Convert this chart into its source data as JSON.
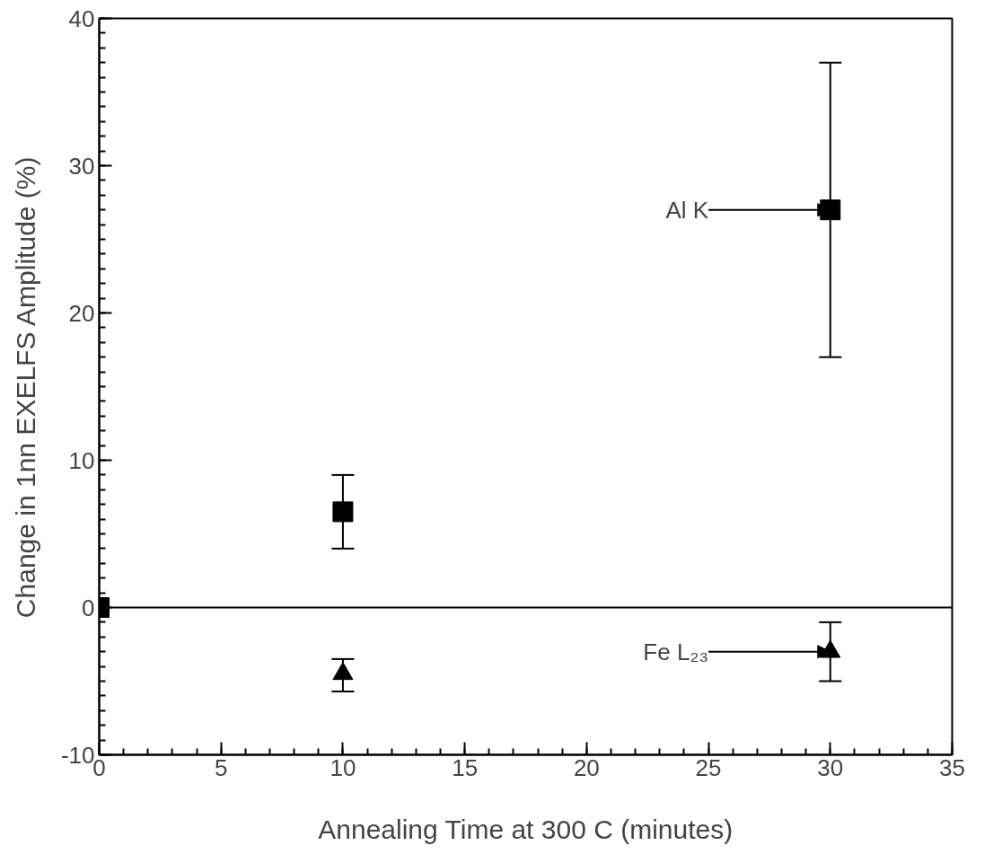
{
  "chart_data": {
    "type": "scatter",
    "xlabel": "Annealing Time at 300 C (minutes)",
    "ylabel": "Change in 1nn EXELFS Amplitude (%)",
    "series": [
      {
        "color": "#000000",
        "marker": "square",
        "x": [
          0,
          10,
          30
        ],
        "values": [
          0,
          6.5,
          27
        ],
        "errors": [
          null,
          [
            4,
            9
          ],
          [
            17,
            37
          ]
        ]
      },
      {
        "color": "#000000",
        "marker": "triangle",
        "x": [
          10,
          30
        ],
        "values": [
          -4.5,
          -3
        ],
        "errors": [
          [
            -5.7,
            -3.5
          ],
          [
            -5,
            -1
          ]
        ]
      }
    ],
    "annotations": [
      {
        "text": "Al K",
        "x": 30,
        "y": 27
      },
      {
        "text": "Fe L₂₃",
        "x": 30,
        "y": -3
      }
    ],
    "ref_lines": [
      {
        "axis": "y",
        "value": 0,
        "color": "#000000"
      }
    ],
    "xlim": [
      0,
      35
    ],
    "ylim": [
      -10,
      40
    ],
    "xticks": [
      0,
      5,
      10,
      15,
      20,
      25,
      30,
      35
    ],
    "yticks": [
      -10,
      0,
      10,
      20,
      30,
      40
    ],
    "grid": false
  }
}
